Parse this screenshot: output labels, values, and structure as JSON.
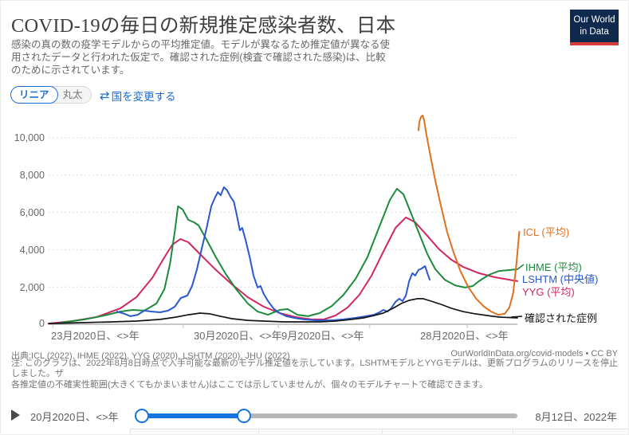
{
  "header": {
    "title": "COVID-19の毎日の新規推定感染者数、日本",
    "subtitle": "感染の真の数の疫学モデルからの平均推定値。モデルが異なるため推定値が異なる使用されたデータと行われた仮定で。確認された症例(検査で確認された感染)は、比較のために示されています。",
    "logo": {
      "line1": "Our World",
      "line2": "in Data"
    }
  },
  "controls": {
    "scale_linear": "リニア",
    "scale_log": "丸太",
    "change_country": "国を変更する",
    "swap_icon": "⇄"
  },
  "colors": {
    "accent_blue": "#1d6cd0",
    "slider_blue": "#1674e0",
    "logo_navy": "#0f2a4e",
    "logo_red": "#d93a3a"
  },
  "chart_data": {
    "type": "line",
    "title": "COVID-19の毎日の新規推定感染者数、日本",
    "xlabel": "",
    "ylabel": "",
    "ylim": [
      0,
      10000
    ],
    "grid": "horizontal-dashed",
    "legend_position": "right-of-lines",
    "x_unit": "fraction of x-axis (localized date labels)",
    "yticks": [
      0,
      2000,
      4000,
      6000,
      8000,
      10000
    ],
    "ytick_labels": [
      "0",
      "2,000",
      "4,000",
      "6,000",
      "8,000",
      "10,000"
    ],
    "xtick_labels": [
      "23月2020日、<>年",
      "30月2020日、<>年",
      "9月2020日、<>年",
      "28月2020日、<>年"
    ],
    "series": [
      {
        "id": "icl",
        "label": "ICL (平均)",
        "color": "#e0711f",
        "points": [
          [
            0.789,
            10400
          ],
          [
            0.791,
            10860
          ],
          [
            0.794,
            11110
          ],
          [
            0.798,
            11200
          ],
          [
            0.801,
            10940
          ],
          [
            0.806,
            10170
          ],
          [
            0.815,
            8970
          ],
          [
            0.825,
            7690
          ],
          [
            0.837,
            6330
          ],
          [
            0.85,
            4960
          ],
          [
            0.864,
            3850
          ],
          [
            0.879,
            2820
          ],
          [
            0.895,
            2010
          ],
          [
            0.912,
            1370
          ],
          [
            0.929,
            940
          ],
          [
            0.944,
            680
          ],
          [
            0.959,
            510
          ],
          [
            0.973,
            560
          ],
          [
            0.983,
            900
          ],
          [
            0.991,
            1670
          ],
          [
            0.998,
            3250
          ],
          [
            1.004,
            4960
          ]
        ]
      },
      {
        "id": "ihme",
        "label": "IHME (平均)",
        "color": "#1c8c3c",
        "points": [
          [
            0.026,
            85
          ],
          [
            0.077,
            260
          ],
          [
            0.119,
            470
          ],
          [
            0.153,
            680
          ],
          [
            0.179,
            770
          ],
          [
            0.204,
            730
          ],
          [
            0.23,
            1110
          ],
          [
            0.247,
            1880
          ],
          [
            0.259,
            3250
          ],
          [
            0.269,
            4960
          ],
          [
            0.276,
            6330
          ],
          [
            0.286,
            6150
          ],
          [
            0.298,
            5600
          ],
          [
            0.31,
            5470
          ],
          [
            0.32,
            5300
          ],
          [
            0.337,
            4530
          ],
          [
            0.357,
            3590
          ],
          [
            0.378,
            2690
          ],
          [
            0.4,
            1880
          ],
          [
            0.425,
            1110
          ],
          [
            0.446,
            680
          ],
          [
            0.468,
            510
          ],
          [
            0.493,
            770
          ],
          [
            0.51,
            810
          ],
          [
            0.531,
            510
          ],
          [
            0.553,
            430
          ],
          [
            0.578,
            600
          ],
          [
            0.604,
            980
          ],
          [
            0.629,
            1580
          ],
          [
            0.655,
            2440
          ],
          [
            0.68,
            3590
          ],
          [
            0.706,
            5260
          ],
          [
            0.728,
            6670
          ],
          [
            0.743,
            7270
          ],
          [
            0.757,
            6970
          ],
          [
            0.774,
            5900
          ],
          [
            0.791,
            4830
          ],
          [
            0.808,
            3760
          ],
          [
            0.825,
            2950
          ],
          [
            0.845,
            2390
          ],
          [
            0.867,
            2090
          ],
          [
            0.888,
            1970
          ],
          [
            0.905,
            2050
          ],
          [
            0.918,
            2310
          ],
          [
            0.939,
            2650
          ],
          [
            0.961,
            2860
          ],
          [
            1.0,
            2950
          ]
        ]
      },
      {
        "id": "lshtm",
        "label": "LSHTM (中央値)",
        "color": "#2959cc",
        "points": [
          [
            0.146,
            680
          ],
          [
            0.162,
            560
          ],
          [
            0.175,
            430
          ],
          [
            0.19,
            510
          ],
          [
            0.204,
            730
          ],
          [
            0.221,
            680
          ],
          [
            0.238,
            640
          ],
          [
            0.255,
            730
          ],
          [
            0.269,
            940
          ],
          [
            0.282,
            1410
          ],
          [
            0.296,
            1540
          ],
          [
            0.306,
            2050
          ],
          [
            0.316,
            2910
          ],
          [
            0.327,
            4100
          ],
          [
            0.337,
            5170
          ],
          [
            0.347,
            6330
          ],
          [
            0.354,
            6750
          ],
          [
            0.361,
            7090
          ],
          [
            0.367,
            6920
          ],
          [
            0.374,
            7350
          ],
          [
            0.381,
            7180
          ],
          [
            0.388,
            6840
          ],
          [
            0.395,
            6580
          ],
          [
            0.401,
            5900
          ],
          [
            0.408,
            5040
          ],
          [
            0.413,
            5170
          ],
          [
            0.42,
            4530
          ],
          [
            0.429,
            3590
          ],
          [
            0.437,
            2610
          ],
          [
            0.446,
            1970
          ],
          [
            0.452,
            2050
          ],
          [
            0.459,
            1620
          ],
          [
            0.469,
            1200
          ],
          [
            0.481,
            810
          ],
          [
            0.493,
            600
          ],
          [
            0.507,
            430
          ],
          [
            0.524,
            340
          ],
          [
            0.544,
            260
          ],
          [
            0.57,
            210
          ],
          [
            0.604,
            210
          ],
          [
            0.629,
            260
          ],
          [
            0.655,
            340
          ],
          [
            0.677,
            430
          ],
          [
            0.694,
            510
          ],
          [
            0.706,
            640
          ],
          [
            0.714,
            770
          ],
          [
            0.723,
            680
          ],
          [
            0.731,
            860
          ],
          [
            0.74,
            1200
          ],
          [
            0.748,
            1370
          ],
          [
            0.755,
            1240
          ],
          [
            0.762,
            1540
          ],
          [
            0.769,
            2310
          ],
          [
            0.776,
            2740
          ],
          [
            0.782,
            2610
          ],
          [
            0.789,
            2910
          ],
          [
            0.796,
            2990
          ],
          [
            0.803,
            3120
          ],
          [
            0.808,
            2740
          ],
          [
            0.813,
            2390
          ]
        ]
      },
      {
        "id": "yyg",
        "label": "YYG (平均)",
        "color": "#d1275f",
        "points": [
          [
            0.0,
            40
          ],
          [
            0.051,
            170
          ],
          [
            0.102,
            385
          ],
          [
            0.153,
            855
          ],
          [
            0.187,
            1450
          ],
          [
            0.221,
            2480
          ],
          [
            0.247,
            3590
          ],
          [
            0.264,
            4270
          ],
          [
            0.281,
            4570
          ],
          [
            0.298,
            4400
          ],
          [
            0.323,
            3760
          ],
          [
            0.357,
            2910
          ],
          [
            0.391,
            2140
          ],
          [
            0.425,
            1450
          ],
          [
            0.459,
            940
          ],
          [
            0.493,
            600
          ],
          [
            0.527,
            385
          ],
          [
            0.561,
            260
          ],
          [
            0.587,
            260
          ],
          [
            0.612,
            470
          ],
          [
            0.638,
            900
          ],
          [
            0.663,
            1580
          ],
          [
            0.689,
            2610
          ],
          [
            0.714,
            3890
          ],
          [
            0.74,
            5170
          ],
          [
            0.762,
            5730
          ],
          [
            0.782,
            5470
          ],
          [
            0.808,
            4740
          ],
          [
            0.833,
            4020
          ],
          [
            0.859,
            3460
          ],
          [
            0.884,
            3080
          ],
          [
            0.918,
            2740
          ],
          [
            0.952,
            2520
          ],
          [
            1.0,
            2310
          ]
        ]
      },
      {
        "id": "confirmed",
        "label": "確認された症例",
        "color": "#161616",
        "points": [
          [
            0.0,
            40
          ],
          [
            0.068,
            85
          ],
          [
            0.136,
            130
          ],
          [
            0.187,
            170
          ],
          [
            0.238,
            260
          ],
          [
            0.272,
            385
          ],
          [
            0.298,
            510
          ],
          [
            0.323,
            600
          ],
          [
            0.344,
            560
          ],
          [
            0.366,
            430
          ],
          [
            0.391,
            300
          ],
          [
            0.425,
            210
          ],
          [
            0.459,
            170
          ],
          [
            0.502,
            130
          ],
          [
            0.544,
            130
          ],
          [
            0.578,
            130
          ],
          [
            0.612,
            170
          ],
          [
            0.646,
            260
          ],
          [
            0.672,
            340
          ],
          [
            0.694,
            470
          ],
          [
            0.714,
            600
          ],
          [
            0.735,
            860
          ],
          [
            0.752,
            1110
          ],
          [
            0.769,
            1280
          ],
          [
            0.786,
            1370
          ],
          [
            0.799,
            1370
          ],
          [
            0.816,
            1240
          ],
          [
            0.837,
            1070
          ],
          [
            0.859,
            860
          ],
          [
            0.884,
            680
          ],
          [
            0.91,
            560
          ],
          [
            0.935,
            470
          ],
          [
            0.961,
            385
          ],
          [
            1.0,
            340
          ]
        ]
      }
    ]
  },
  "footer": {
    "sources": "出典:ICL (2022), IHME (2022), YYG (2020), LSHTM (2020), JHU (2022)",
    "attribution": "OurWorldInData.org/covid-models • CC BY",
    "note_line1": "注: このグラフは、2022年8月8日時点で入手可能な最新のモデル推定値を示しています。LSHTMモデルとYYGモデルは、更新プログラムのリリースを停止しました。ザ",
    "note_line2": "各推定値の不確実性範囲(大きくてもかまいません)はここでは示していませんが、個々のモデルチャートで確認できます。"
  },
  "timeline": {
    "start_label": "20月2020日、<>年",
    "end_label": "8月12日、2022年"
  }
}
